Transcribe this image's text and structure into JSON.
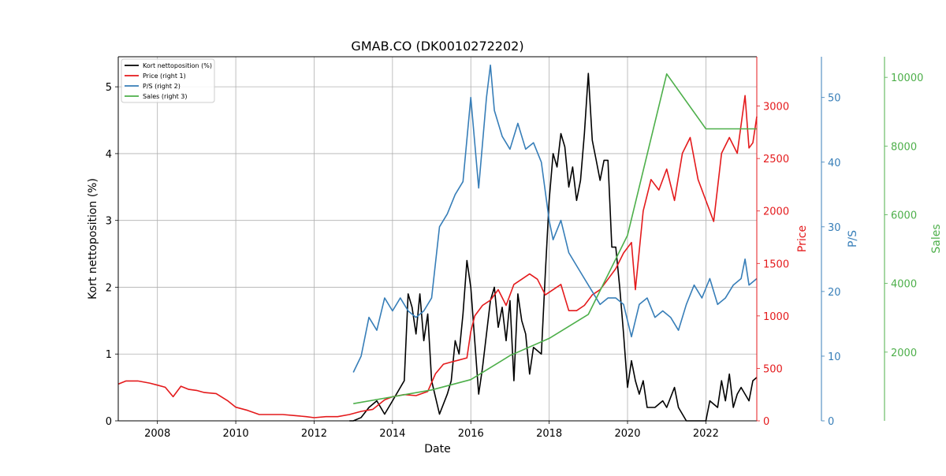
{
  "chart_data": {
    "type": "line",
    "title": "GMAB.CO (DK0010272202)",
    "xlabel": "Date",
    "x_ticks": [
      "2008",
      "2010",
      "2012",
      "2014",
      "2016",
      "2018",
      "2020",
      "2022"
    ],
    "xlim": [
      2007.0,
      2023.3
    ],
    "grid": true,
    "legend_position": "top-left",
    "axes": [
      {
        "id": "left",
        "label": "Kort nettoposition (%)",
        "color": "#000000",
        "range": [
          0,
          5.45
        ],
        "ticks": [
          0,
          1,
          2,
          3,
          4,
          5
        ],
        "tick_labels": [
          "0",
          "1",
          "2",
          "3",
          "4",
          "5"
        ]
      },
      {
        "id": "right1",
        "label": "Price",
        "color": "#e41a1c",
        "range": [
          0,
          3470
        ],
        "ticks": [
          0,
          500,
          1000,
          1500,
          2000,
          2500,
          3000
        ],
        "tick_labels": [
          "0",
          "500",
          "1000",
          "1500",
          "2000",
          "2500",
          "3000"
        ]
      },
      {
        "id": "right2",
        "label": "P/S",
        "color": "#377eb8",
        "range": [
          0,
          56.3
        ],
        "ticks": [
          0,
          10,
          20,
          30,
          40,
          50
        ],
        "tick_labels": [
          "0",
          "10",
          "20",
          "30",
          "40",
          "50"
        ]
      },
      {
        "id": "right3",
        "label": "Sales",
        "color": "#4daf4a",
        "range": [
          0,
          10600
        ],
        "ticks": [
          2000,
          4000,
          6000,
          8000,
          10000
        ],
        "tick_labels": [
          "2000",
          "4000",
          "6000",
          "8000",
          "10000"
        ]
      }
    ],
    "series": [
      {
        "name": "Kort nettoposition (%)",
        "color": "#000000",
        "axis": "left",
        "points": [
          [
            2012.9,
            0
          ],
          [
            2013.0,
            0
          ],
          [
            2013.2,
            0.05
          ],
          [
            2013.4,
            0.2
          ],
          [
            2013.6,
            0.3
          ],
          [
            2013.8,
            0.1
          ],
          [
            2014.0,
            0.3
          ],
          [
            2014.2,
            0.5
          ],
          [
            2014.3,
            0.6
          ],
          [
            2014.4,
            1.9
          ],
          [
            2014.5,
            1.7
          ],
          [
            2014.6,
            1.3
          ],
          [
            2014.7,
            1.9
          ],
          [
            2014.8,
            1.2
          ],
          [
            2014.9,
            1.6
          ],
          [
            2015.0,
            0.6
          ],
          [
            2015.2,
            0.1
          ],
          [
            2015.4,
            0.4
          ],
          [
            2015.5,
            0.6
          ],
          [
            2015.6,
            1.2
          ],
          [
            2015.7,
            1.0
          ],
          [
            2015.8,
            1.6
          ],
          [
            2015.9,
            2.4
          ],
          [
            2016.0,
            2.0
          ],
          [
            2016.1,
            1.2
          ],
          [
            2016.2,
            0.4
          ],
          [
            2016.3,
            0.8
          ],
          [
            2016.5,
            1.8
          ],
          [
            2016.6,
            2.0
          ],
          [
            2016.7,
            1.4
          ],
          [
            2016.8,
            1.7
          ],
          [
            2016.9,
            1.2
          ],
          [
            2017.0,
            1.8
          ],
          [
            2017.1,
            0.6
          ],
          [
            2017.2,
            1.9
          ],
          [
            2017.3,
            1.5
          ],
          [
            2017.4,
            1.3
          ],
          [
            2017.5,
            0.7
          ],
          [
            2017.6,
            1.1
          ],
          [
            2017.8,
            1.0
          ],
          [
            2017.9,
            2.2
          ],
          [
            2018.0,
            3.3
          ],
          [
            2018.1,
            4.0
          ],
          [
            2018.2,
            3.8
          ],
          [
            2018.3,
            4.3
          ],
          [
            2018.4,
            4.1
          ],
          [
            2018.5,
            3.5
          ],
          [
            2018.6,
            3.8
          ],
          [
            2018.7,
            3.3
          ],
          [
            2018.8,
            3.6
          ],
          [
            2018.9,
            4.3
          ],
          [
            2019.0,
            5.2
          ],
          [
            2019.1,
            4.2
          ],
          [
            2019.2,
            3.9
          ],
          [
            2019.3,
            3.6
          ],
          [
            2019.4,
            3.9
          ],
          [
            2019.5,
            3.9
          ],
          [
            2019.6,
            2.6
          ],
          [
            2019.7,
            2.6
          ],
          [
            2019.8,
            2.0
          ],
          [
            2019.9,
            1.3
          ],
          [
            2020.0,
            0.5
          ],
          [
            2020.1,
            0.9
          ],
          [
            2020.2,
            0.6
          ],
          [
            2020.3,
            0.4
          ],
          [
            2020.4,
            0.6
          ],
          [
            2020.5,
            0.2
          ],
          [
            2020.7,
            0.2
          ],
          [
            2020.9,
            0.3
          ],
          [
            2021.0,
            0.2
          ],
          [
            2021.2,
            0.5
          ],
          [
            2021.3,
            0.2
          ],
          [
            2021.5,
            0
          ],
          [
            2021.7,
            0
          ],
          [
            2022.0,
            0
          ],
          [
            2022.1,
            0.3
          ],
          [
            2022.3,
            0.2
          ],
          [
            2022.4,
            0.6
          ],
          [
            2022.5,
            0.3
          ],
          [
            2022.6,
            0.7
          ],
          [
            2022.7,
            0.2
          ],
          [
            2022.8,
            0.4
          ],
          [
            2022.9,
            0.5
          ],
          [
            2023.0,
            0.4
          ],
          [
            2023.1,
            0.3
          ],
          [
            2023.2,
            0.6
          ],
          [
            2023.3,
            0.65
          ]
        ]
      },
      {
        "name": "Price (right 1)",
        "color": "#e41a1c",
        "axis": "right1",
        "points": [
          [
            2007.0,
            350
          ],
          [
            2007.2,
            380
          ],
          [
            2007.5,
            380
          ],
          [
            2007.8,
            360
          ],
          [
            2008.0,
            340
          ],
          [
            2008.2,
            320
          ],
          [
            2008.4,
            230
          ],
          [
            2008.6,
            330
          ],
          [
            2008.8,
            300
          ],
          [
            2009.0,
            290
          ],
          [
            2009.2,
            270
          ],
          [
            2009.5,
            260
          ],
          [
            2009.8,
            190
          ],
          [
            2010.0,
            130
          ],
          [
            2010.3,
            100
          ],
          [
            2010.6,
            60
          ],
          [
            2010.9,
            60
          ],
          [
            2011.2,
            60
          ],
          [
            2011.5,
            50
          ],
          [
            2011.8,
            40
          ],
          [
            2012.0,
            30
          ],
          [
            2012.3,
            40
          ],
          [
            2012.6,
            40
          ],
          [
            2012.9,
            60
          ],
          [
            2013.2,
            90
          ],
          [
            2013.5,
            110
          ],
          [
            2013.8,
            200
          ],
          [
            2014.0,
            230
          ],
          [
            2014.3,
            250
          ],
          [
            2014.6,
            240
          ],
          [
            2014.9,
            280
          ],
          [
            2015.1,
            450
          ],
          [
            2015.3,
            540
          ],
          [
            2015.5,
            560
          ],
          [
            2015.7,
            580
          ],
          [
            2015.9,
            600
          ],
          [
            2016.0,
            850
          ],
          [
            2016.1,
            1000
          ],
          [
            2016.3,
            1100
          ],
          [
            2016.5,
            1150
          ],
          [
            2016.7,
            1250
          ],
          [
            2016.9,
            1100
          ],
          [
            2017.1,
            1300
          ],
          [
            2017.3,
            1350
          ],
          [
            2017.5,
            1400
          ],
          [
            2017.7,
            1350
          ],
          [
            2017.9,
            1200
          ],
          [
            2018.1,
            1250
          ],
          [
            2018.3,
            1300
          ],
          [
            2018.5,
            1050
          ],
          [
            2018.7,
            1050
          ],
          [
            2018.9,
            1100
          ],
          [
            2019.1,
            1200
          ],
          [
            2019.3,
            1250
          ],
          [
            2019.5,
            1350
          ],
          [
            2019.7,
            1450
          ],
          [
            2019.9,
            1600
          ],
          [
            2020.1,
            1700
          ],
          [
            2020.2,
            1250
          ],
          [
            2020.4,
            2000
          ],
          [
            2020.6,
            2300
          ],
          [
            2020.8,
            2200
          ],
          [
            2021.0,
            2400
          ],
          [
            2021.2,
            2100
          ],
          [
            2021.4,
            2550
          ],
          [
            2021.6,
            2700
          ],
          [
            2021.8,
            2300
          ],
          [
            2022.0,
            2100
          ],
          [
            2022.2,
            1900
          ],
          [
            2022.4,
            2550
          ],
          [
            2022.6,
            2700
          ],
          [
            2022.8,
            2550
          ],
          [
            2023.0,
            3100
          ],
          [
            2023.1,
            2600
          ],
          [
            2023.2,
            2650
          ],
          [
            2023.3,
            2900
          ]
        ]
      },
      {
        "name": "P/S (right 2)",
        "color": "#377eb8",
        "axis": "right2",
        "points": [
          [
            2013.0,
            7.5
          ],
          [
            2013.2,
            10
          ],
          [
            2013.4,
            16
          ],
          [
            2013.6,
            14
          ],
          [
            2013.8,
            19
          ],
          [
            2014.0,
            17
          ],
          [
            2014.2,
            19
          ],
          [
            2014.4,
            17
          ],
          [
            2014.6,
            16
          ],
          [
            2014.8,
            17
          ],
          [
            2015.0,
            19
          ],
          [
            2015.2,
            30
          ],
          [
            2015.4,
            32
          ],
          [
            2015.6,
            35
          ],
          [
            2015.8,
            37
          ],
          [
            2016.0,
            50
          ],
          [
            2016.2,
            36
          ],
          [
            2016.4,
            50
          ],
          [
            2016.5,
            55
          ],
          [
            2016.6,
            48
          ],
          [
            2016.8,
            44
          ],
          [
            2017.0,
            42
          ],
          [
            2017.2,
            46
          ],
          [
            2017.4,
            42
          ],
          [
            2017.6,
            43
          ],
          [
            2017.8,
            40
          ],
          [
            2018.0,
            31
          ],
          [
            2018.1,
            28
          ],
          [
            2018.3,
            31
          ],
          [
            2018.5,
            26
          ],
          [
            2018.7,
            24
          ],
          [
            2018.9,
            22
          ],
          [
            2019.1,
            20
          ],
          [
            2019.3,
            18
          ],
          [
            2019.5,
            19
          ],
          [
            2019.7,
            19
          ],
          [
            2019.9,
            18
          ],
          [
            2020.1,
            13
          ],
          [
            2020.3,
            18
          ],
          [
            2020.5,
            19
          ],
          [
            2020.7,
            16
          ],
          [
            2020.9,
            17
          ],
          [
            2021.1,
            16
          ],
          [
            2021.3,
            14
          ],
          [
            2021.5,
            18
          ],
          [
            2021.7,
            21
          ],
          [
            2021.9,
            19
          ],
          [
            2022.1,
            22
          ],
          [
            2022.3,
            18
          ],
          [
            2022.5,
            19
          ],
          [
            2022.7,
            21
          ],
          [
            2022.9,
            22
          ],
          [
            2023.0,
            25
          ],
          [
            2023.1,
            21
          ],
          [
            2023.3,
            22
          ]
        ]
      },
      {
        "name": "Sales (right 3)",
        "color": "#4daf4a",
        "axis": "right3",
        "points": [
          [
            2013.0,
            500
          ],
          [
            2014.0,
            700
          ],
          [
            2015.0,
            900
          ],
          [
            2016.0,
            1200
          ],
          [
            2017.0,
            1900
          ],
          [
            2018.0,
            2400
          ],
          [
            2019.0,
            3100
          ],
          [
            2020.0,
            5400
          ],
          [
            2021.0,
            10100
          ],
          [
            2022.0,
            8500
          ],
          [
            2023.3,
            8500
          ]
        ]
      }
    ]
  }
}
